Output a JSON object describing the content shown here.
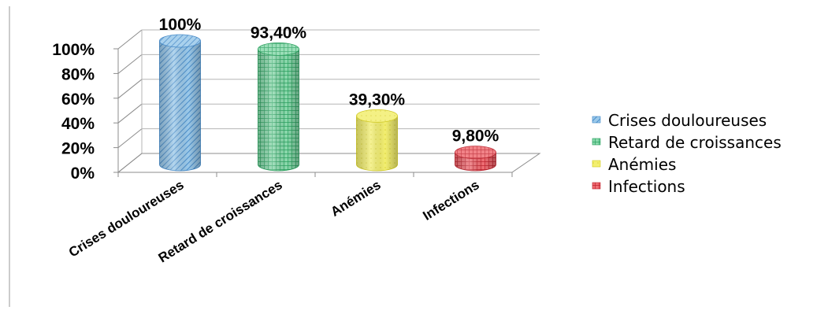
{
  "chart_data": {
    "type": "bar",
    "style": "3d-cylinder",
    "title": "",
    "xlabel": "",
    "ylabel": "",
    "categories": [
      "Crises douloureuses",
      "Retard de croissances",
      "Anémies",
      "Infections"
    ],
    "values": [
      100,
      93.4,
      39.3,
      9.8
    ],
    "data_labels": [
      "100%",
      "93,40%",
      "39,30%",
      "9,80%"
    ],
    "y_ticks": [
      "0%",
      "20%",
      "40%",
      "60%",
      "80%",
      "100%"
    ],
    "ylim": [
      0,
      100
    ],
    "grid": true,
    "legend_position": "right",
    "legend": [
      "Crises douloureuses",
      "Retard de croissances",
      "Anémies",
      "Infections"
    ],
    "colors": [
      "#8fc3e8",
      "#7fd6a4",
      "#f2ee6a",
      "#e8555b"
    ],
    "pattern_colors": [
      "#3a82c4",
      "#1f9a55",
      "#cfc81c",
      "#b91f2a"
    ]
  }
}
